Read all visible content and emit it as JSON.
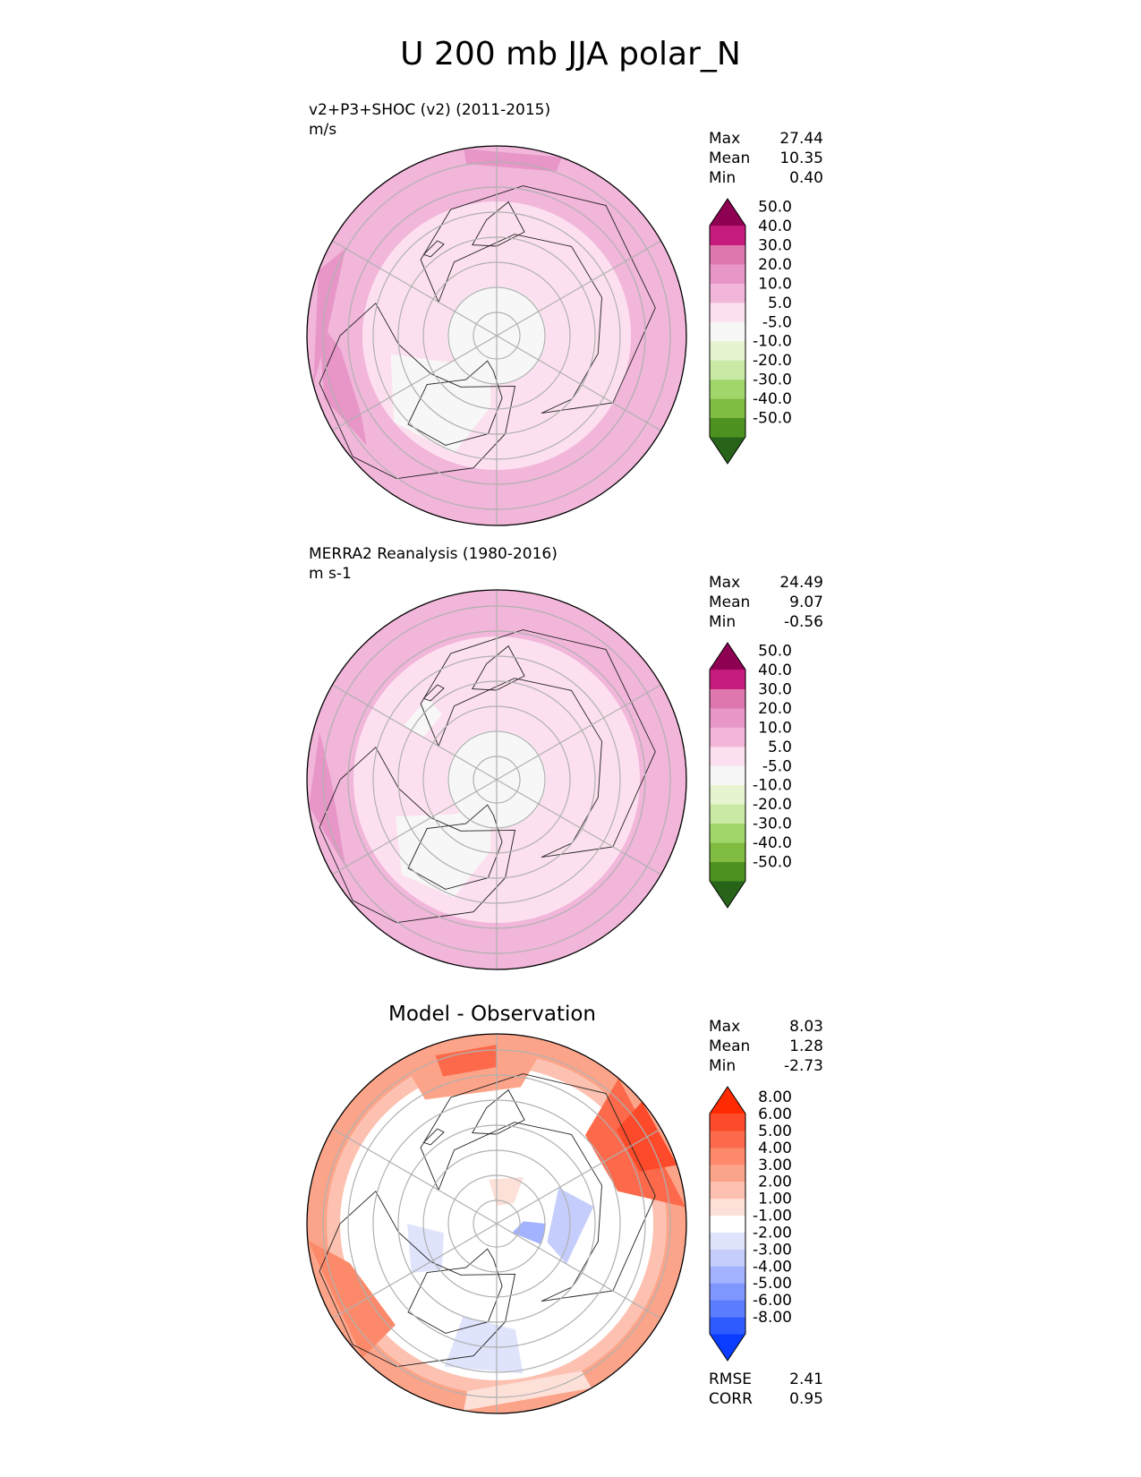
{
  "title": "U 200 mb JJA polar_N",
  "panels": [
    {
      "id": "model",
      "label_line1": "v2+P3+SHOC (v2) (2011-2015)",
      "label_line2": "m/s",
      "center_title": "",
      "stats": [
        {
          "name": "Max",
          "value": "27.44"
        },
        {
          "name": "Mean",
          "value": "10.35"
        },
        {
          "name": "Min",
          "value": "0.40"
        }
      ],
      "colorbar": {
        "colors": [
          "#276419",
          "#4d9221",
          "#7fbc41",
          "#a1d76a",
          "#c9e9a4",
          "#e6f5d0",
          "#f7f7f7",
          "#fde0ef",
          "#f1b6da",
          "#e796c7",
          "#de77ae",
          "#c51b7d",
          "#8e0152"
        ],
        "ticks": [
          "-50.0",
          "-40.0",
          "-30.0",
          "-20.0",
          "-10.0",
          "-5.0",
          "5.0",
          "10.0",
          "20.0",
          "30.0",
          "40.0",
          "50.0"
        ]
      }
    },
    {
      "id": "obs",
      "label_line1": "MERRA2 Reanalysis (1980-2016)",
      "label_line2": "m s-1",
      "center_title": "",
      "stats": [
        {
          "name": "Max",
          "value": "24.49"
        },
        {
          "name": "Mean",
          "value": "9.07"
        },
        {
          "name": "Min",
          "value": "-0.56"
        }
      ],
      "colorbar": {
        "colors": [
          "#276419",
          "#4d9221",
          "#7fbc41",
          "#a1d76a",
          "#c9e9a4",
          "#e6f5d0",
          "#f7f7f7",
          "#fde0ef",
          "#f1b6da",
          "#e796c7",
          "#de77ae",
          "#c51b7d",
          "#8e0152"
        ],
        "ticks": [
          "-50.0",
          "-40.0",
          "-30.0",
          "-20.0",
          "-10.0",
          "-5.0",
          "5.0",
          "10.0",
          "20.0",
          "30.0",
          "40.0",
          "50.0"
        ]
      }
    },
    {
      "id": "diff",
      "label_line1": "",
      "label_line2": "",
      "center_title": "Model - Observation",
      "stats": [
        {
          "name": "Max",
          "value": "8.03"
        },
        {
          "name": "Mean",
          "value": "1.28"
        },
        {
          "name": "Min",
          "value": "-2.73"
        }
      ],
      "extra_stats": [
        {
          "name": "RMSE",
          "value": "2.41"
        },
        {
          "name": "CORR",
          "value": "0.95"
        }
      ],
      "colorbar": {
        "colors": [
          "#0a3cff",
          "#2e5bff",
          "#5a7dff",
          "#7f96ff",
          "#a3b3ff",
          "#c4cdfb",
          "#dfe3fb",
          "#ffffff",
          "#fde0d8",
          "#fcc1b0",
          "#fca489",
          "#fc8a6a",
          "#fc6a4b",
          "#fc4a2a",
          "#ff2a00"
        ],
        "ticks": [
          "-8.00",
          "-6.00",
          "-5.00",
          "-4.00",
          "-3.00",
          "-2.00",
          "-1.00",
          "1.00",
          "2.00",
          "3.00",
          "4.00",
          "5.00",
          "6.00",
          "8.00"
        ]
      }
    }
  ]
}
